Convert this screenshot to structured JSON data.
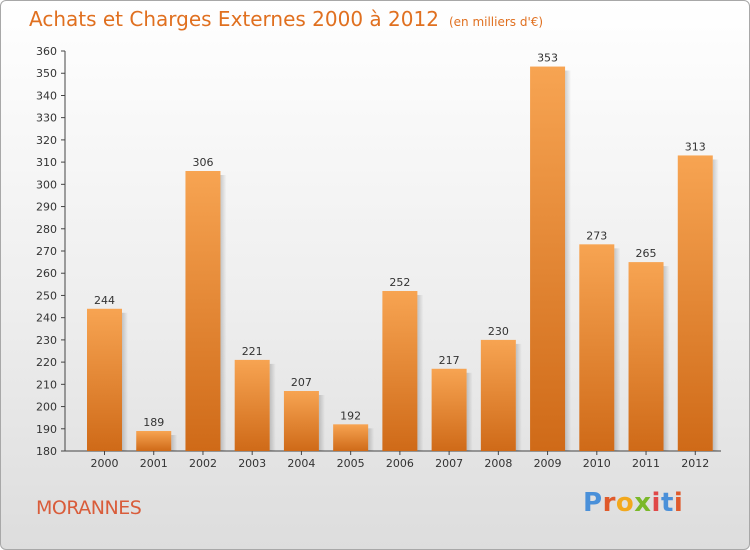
{
  "header": {
    "title": "Achats et Charges Externes 2000 à 2012",
    "unit": "(en milliers d'€)"
  },
  "footer": {
    "town": "MORANNES",
    "logo_text": "Proxiti",
    "logo_colors": [
      "#4a90d9",
      "#e05a2b",
      "#f2a81d",
      "#7ab829",
      "#e04848",
      "#4a90d9",
      "#e05a2b"
    ]
  },
  "colors": {
    "bar_light": "#f7a452",
    "bar_dark": "#cf6a18",
    "title": "#e07020",
    "town": "#d95c3a"
  },
  "chart_data": {
    "type": "bar",
    "title": "Achats et Charges Externes 2000 à 2012",
    "subtitle": "(en milliers d'€)",
    "categories": [
      "2000",
      "2001",
      "2002",
      "2003",
      "2004",
      "2005",
      "2006",
      "2007",
      "2008",
      "2009",
      "2010",
      "2011",
      "2012"
    ],
    "values": [
      244,
      189,
      306,
      221,
      207,
      192,
      252,
      217,
      230,
      353,
      273,
      265,
      313
    ],
    "ylim": [
      180,
      360
    ],
    "ytick_step": 10,
    "grid": false,
    "xlabel": "",
    "ylabel": ""
  }
}
